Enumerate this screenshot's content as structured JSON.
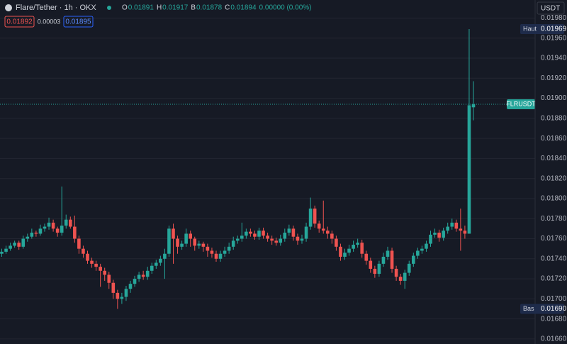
{
  "header": {
    "symbol": "Flare/Tether · 1h · OKX",
    "ohlc": [
      {
        "label": "O",
        "value": "0.01891"
      },
      {
        "label": "H",
        "value": "0.01917"
      },
      {
        "label": "B",
        "value": "0.01878"
      },
      {
        "label": "C",
        "value": "0.01894"
      }
    ],
    "change": "0.00000 (0.00%)",
    "bid": "0.01892",
    "spread": "0.00003",
    "ask": "0.01895",
    "currency": "USDT"
  },
  "chart_data": {
    "type": "candlestick",
    "colors": {
      "up": "#26a69a",
      "down": "#ef5350"
    },
    "ylim": [
      0.01655,
      0.01998
    ],
    "yticks": [
      {
        "value": 0.0166,
        "label": "0.01660"
      },
      {
        "value": 0.0168,
        "label": "0.01680"
      },
      {
        "value": 0.017,
        "label": "0.01700"
      },
      {
        "value": 0.0172,
        "label": "0.01720"
      },
      {
        "value": 0.0174,
        "label": "0.01740"
      },
      {
        "value": 0.0176,
        "label": "0.01760"
      },
      {
        "value": 0.0178,
        "label": "0.01780"
      },
      {
        "value": 0.018,
        "label": "0.01800"
      },
      {
        "value": 0.0182,
        "label": "0.01820"
      },
      {
        "value": 0.0184,
        "label": "0.01840"
      },
      {
        "value": 0.0186,
        "label": "0.01860"
      },
      {
        "value": 0.0188,
        "label": "0.01880"
      },
      {
        "value": 0.019,
        "label": "0.01900"
      },
      {
        "value": 0.0192,
        "label": "0.01920"
      },
      {
        "value": 0.0194,
        "label": "0.01940"
      },
      {
        "value": 0.0196,
        "label": "0.01960"
      },
      {
        "value": 0.0198,
        "label": "0.01980"
      }
    ],
    "grid": true,
    "high_marker": {
      "label": "Haut",
      "value": 0.01969,
      "value_label": "0.01969"
    },
    "low_marker": {
      "label": "Bas",
      "value": 0.0169,
      "value_label": "0.01690"
    },
    "last_marker": {
      "label": "FLRUSDT",
      "value": 0.01894
    },
    "candles": [
      [
        0.01745,
        0.0175,
        0.01742,
        0.01747
      ],
      [
        0.01747,
        0.01753,
        0.01745,
        0.0175
      ],
      [
        0.0175,
        0.01756,
        0.01748,
        0.01753
      ],
      [
        0.01753,
        0.01758,
        0.01751,
        0.01756
      ],
      [
        0.01756,
        0.01758,
        0.01749,
        0.01752
      ],
      [
        0.01752,
        0.01763,
        0.0175,
        0.0176
      ],
      [
        0.0176,
        0.01765,
        0.01757,
        0.01762
      ],
      [
        0.01762,
        0.0177,
        0.0176,
        0.01766
      ],
      [
        0.01766,
        0.01768,
        0.01762,
        0.01765
      ],
      [
        0.01765,
        0.01774,
        0.01763,
        0.0177
      ],
      [
        0.0177,
        0.01775,
        0.01767,
        0.01772
      ],
      [
        0.01772,
        0.01781,
        0.01769,
        0.01776
      ],
      [
        0.01776,
        0.01779,
        0.01767,
        0.0177
      ],
      [
        0.0177,
        0.01772,
        0.01762,
        0.01766
      ],
      [
        0.01766,
        0.01812,
        0.01763,
        0.01773
      ],
      [
        0.01773,
        0.01784,
        0.0177,
        0.01779
      ],
      [
        0.01779,
        0.01782,
        0.0177,
        0.01772
      ],
      [
        0.01772,
        0.01783,
        0.01756,
        0.0176
      ],
      [
        0.0176,
        0.01763,
        0.01745,
        0.0175
      ],
      [
        0.0175,
        0.01753,
        0.01741,
        0.01745
      ],
      [
        0.01745,
        0.01748,
        0.01735,
        0.01738
      ],
      [
        0.01738,
        0.01741,
        0.01731,
        0.01735
      ],
      [
        0.01735,
        0.01738,
        0.01728,
        0.01732
      ],
      [
        0.01732,
        0.01735,
        0.01712,
        0.01728
      ],
      [
        0.01728,
        0.01731,
        0.01718,
        0.01724
      ],
      [
        0.01724,
        0.01727,
        0.0171,
        0.01716
      ],
      [
        0.01716,
        0.01719,
        0.017,
        0.01706
      ],
      [
        0.01706,
        0.01709,
        0.0169,
        0.017
      ],
      [
        0.017,
        0.01706,
        0.01695,
        0.01702
      ],
      [
        0.01702,
        0.01713,
        0.01698,
        0.0171
      ],
      [
        0.0171,
        0.01718,
        0.01706,
        0.01715
      ],
      [
        0.01715,
        0.01723,
        0.01712,
        0.0172
      ],
      [
        0.0172,
        0.01727,
        0.01717,
        0.01724
      ],
      [
        0.01724,
        0.01728,
        0.01719,
        0.01722
      ],
      [
        0.01722,
        0.01732,
        0.01719,
        0.01728
      ],
      [
        0.01728,
        0.01736,
        0.01725,
        0.01733
      ],
      [
        0.01733,
        0.01739,
        0.0173,
        0.01736
      ],
      [
        0.01736,
        0.01743,
        0.01733,
        0.0174
      ],
      [
        0.0174,
        0.0175,
        0.0172,
        0.01745
      ],
      [
        0.01745,
        0.01773,
        0.01742,
        0.0177
      ],
      [
        0.0177,
        0.01775,
        0.01735,
        0.0176
      ],
      [
        0.0176,
        0.01763,
        0.01745,
        0.01752
      ],
      [
        0.01752,
        0.01758,
        0.01749,
        0.01755
      ],
      [
        0.01755,
        0.0177,
        0.01752,
        0.01765
      ],
      [
        0.01765,
        0.01768,
        0.01752,
        0.0176
      ],
      [
        0.0176,
        0.01762,
        0.01748,
        0.01753
      ],
      [
        0.01753,
        0.01758,
        0.0175,
        0.01755
      ],
      [
        0.01755,
        0.01757,
        0.01747,
        0.01752
      ],
      [
        0.01752,
        0.01755,
        0.01742,
        0.01748
      ],
      [
        0.01748,
        0.01751,
        0.01741,
        0.01745
      ],
      [
        0.01745,
        0.01748,
        0.01737,
        0.0174
      ],
      [
        0.0174,
        0.01748,
        0.01737,
        0.01745
      ],
      [
        0.01745,
        0.01752,
        0.01742,
        0.01748
      ],
      [
        0.01748,
        0.01756,
        0.01745,
        0.01752
      ],
      [
        0.01752,
        0.01762,
        0.01749,
        0.01758
      ],
      [
        0.01758,
        0.01763,
        0.01755,
        0.0176
      ],
      [
        0.0176,
        0.01776,
        0.01757,
        0.01763
      ],
      [
        0.01763,
        0.0177,
        0.0176,
        0.01767
      ],
      [
        0.01767,
        0.0177,
        0.01762,
        0.01765
      ],
      [
        0.01765,
        0.01768,
        0.01759,
        0.01762
      ],
      [
        0.01762,
        0.01771,
        0.01759,
        0.01768
      ],
      [
        0.01768,
        0.01771,
        0.0176,
        0.01763
      ],
      [
        0.01763,
        0.01766,
        0.01757,
        0.0176
      ],
      [
        0.0176,
        0.01763,
        0.01754,
        0.01758
      ],
      [
        0.01758,
        0.01761,
        0.01753,
        0.01756
      ],
      [
        0.01756,
        0.01764,
        0.01753,
        0.0176
      ],
      [
        0.0176,
        0.0177,
        0.01757,
        0.01766
      ],
      [
        0.01766,
        0.01774,
        0.01763,
        0.0177
      ],
      [
        0.0177,
        0.01773,
        0.01758,
        0.01762
      ],
      [
        0.01762,
        0.01765,
        0.01754,
        0.01758
      ],
      [
        0.01758,
        0.01764,
        0.01755,
        0.0176
      ],
      [
        0.0176,
        0.01776,
        0.01757,
        0.01772
      ],
      [
        0.01772,
        0.01801,
        0.01769,
        0.0179
      ],
      [
        0.0179,
        0.01793,
        0.01771,
        0.01775
      ],
      [
        0.01775,
        0.01778,
        0.01766,
        0.0177
      ],
      [
        0.0177,
        0.01798,
        0.01765,
        0.01768
      ],
      [
        0.01768,
        0.01772,
        0.0176,
        0.01765
      ],
      [
        0.01765,
        0.01768,
        0.01755,
        0.0176
      ],
      [
        0.0176,
        0.01763,
        0.01748,
        0.01752
      ],
      [
        0.01752,
        0.01755,
        0.01738,
        0.01742
      ],
      [
        0.01742,
        0.0175,
        0.01739,
        0.01746
      ],
      [
        0.01746,
        0.01754,
        0.01743,
        0.0175
      ],
      [
        0.0175,
        0.01758,
        0.01747,
        0.01754
      ],
      [
        0.01754,
        0.0176,
        0.01751,
        0.01756
      ],
      [
        0.01756,
        0.01759,
        0.01741,
        0.01745
      ],
      [
        0.01745,
        0.01748,
        0.01734,
        0.01738
      ],
      [
        0.01738,
        0.01741,
        0.01726,
        0.0173
      ],
      [
        0.0173,
        0.01733,
        0.01721,
        0.01725
      ],
      [
        0.01725,
        0.01738,
        0.01722,
        0.01735
      ],
      [
        0.01735,
        0.01746,
        0.01732,
        0.01742
      ],
      [
        0.01742,
        0.01752,
        0.01739,
        0.01748
      ],
      [
        0.01748,
        0.01751,
        0.01726,
        0.0173
      ],
      [
        0.0173,
        0.01733,
        0.01718,
        0.01722
      ],
      [
        0.01722,
        0.01725,
        0.01714,
        0.01718
      ],
      [
        0.01718,
        0.01729,
        0.0171,
        0.01726
      ],
      [
        0.01726,
        0.01738,
        0.01723,
        0.01735
      ],
      [
        0.01735,
        0.01746,
        0.01732,
        0.01743
      ],
      [
        0.01743,
        0.01751,
        0.0174,
        0.01748
      ],
      [
        0.01748,
        0.01753,
        0.01745,
        0.0175
      ],
      [
        0.0175,
        0.01758,
        0.01747,
        0.01755
      ],
      [
        0.01755,
        0.01768,
        0.01752,
        0.01764
      ],
      [
        0.01764,
        0.0177,
        0.01761,
        0.01766
      ],
      [
        0.01766,
        0.01769,
        0.01757,
        0.01761
      ],
      [
        0.01761,
        0.01771,
        0.01758,
        0.01768
      ],
      [
        0.01768,
        0.01776,
        0.01765,
        0.01772
      ],
      [
        0.01772,
        0.0178,
        0.01769,
        0.01776
      ],
      [
        0.01776,
        0.01779,
        0.01767,
        0.0177
      ],
      [
        0.0177,
        0.0179,
        0.01748,
        0.01768
      ],
      [
        0.01768,
        0.01773,
        0.0176,
        0.01765
      ],
      [
        0.01765,
        0.01969,
        0.01765,
        0.01893
      ],
      [
        0.01891,
        0.01917,
        0.01878,
        0.01894
      ]
    ]
  }
}
